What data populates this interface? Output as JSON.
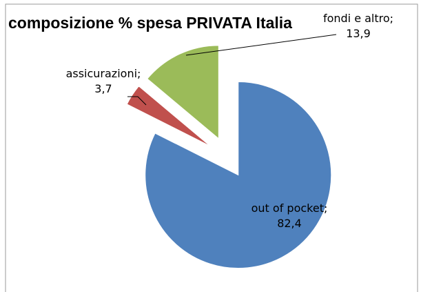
{
  "chart_data": {
    "type": "pie",
    "title": "composizione %  spesa PRIVATA Italia",
    "categories": [
      "out of pocket",
      "assicurazioni",
      "fondi e altro"
    ],
    "values": [
      82.4,
      3.7,
      13.9
    ],
    "value_labels": [
      "82,4",
      "3,7",
      "13,9"
    ],
    "label_separator": ";",
    "colors": [
      "#4f81bd",
      "#c0504d",
      "#9bbb59"
    ]
  }
}
